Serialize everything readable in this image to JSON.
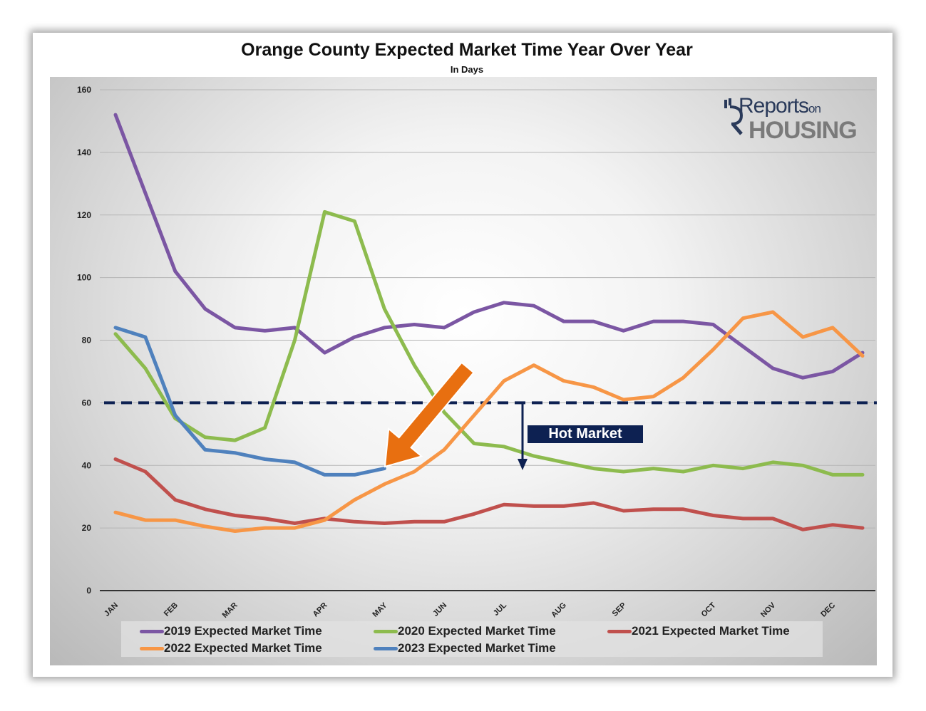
{
  "chart_data": {
    "type": "line",
    "title": "Orange County Expected Market Time Year Over Year",
    "subtitle": "In Days",
    "xlabel": "",
    "ylabel": "",
    "ylim": [
      0,
      160
    ],
    "yticks": [
      0,
      20,
      40,
      60,
      80,
      100,
      120,
      140,
      160
    ],
    "x_count": 26,
    "xtick_labels": [
      {
        "label": "JAN",
        "index": 0
      },
      {
        "label": "FEB",
        "index": 2
      },
      {
        "label": "MAR",
        "index": 4
      },
      {
        "label": "APR",
        "index": 7
      },
      {
        "label": "MAY",
        "index": 9
      },
      {
        "label": "JUN",
        "index": 11
      },
      {
        "label": "JUL",
        "index": 13
      },
      {
        "label": "AUG",
        "index": 15
      },
      {
        "label": "SEP",
        "index": 17
      },
      {
        "label": "OCT",
        "index": 20
      },
      {
        "label": "NOV",
        "index": 22
      },
      {
        "label": "DEC",
        "index": 24
      }
    ],
    "grid": true,
    "legend_position": "bottom",
    "series": [
      {
        "name": "2019 Expected Market Time",
        "color": "#7b56a3",
        "values": [
          152,
          127,
          102,
          90,
          84,
          83,
          84,
          76,
          81,
          84,
          85,
          84,
          89,
          92,
          91,
          86,
          86,
          83,
          86,
          86,
          85,
          78,
          71,
          68,
          70,
          76
        ]
      },
      {
        "name": "2020 Expected Market Time",
        "color": "#8dbb4e",
        "values": [
          82,
          71,
          55,
          49,
          48,
          52,
          80,
          121,
          118,
          90,
          72,
          57,
          47,
          46,
          43,
          41,
          39,
          38,
          39,
          38,
          40,
          39,
          41,
          40,
          37,
          37
        ]
      },
      {
        "name": "2021 Expected Market Time",
        "color": "#c0504d",
        "values": [
          42,
          38,
          29,
          26,
          24,
          23,
          21.5,
          23,
          22,
          21.5,
          22,
          22,
          24.5,
          27.5,
          27,
          27,
          28,
          25.5,
          26,
          26,
          24,
          23,
          23,
          19.5,
          21,
          20
        ]
      },
      {
        "name": "2022 Expected Market Time",
        "color": "#f79646",
        "values": [
          25,
          22.5,
          22.5,
          20.5,
          19,
          20,
          20,
          22.5,
          29,
          34,
          38,
          45,
          56,
          67,
          72,
          67,
          65,
          61,
          62,
          68,
          77,
          87,
          89,
          81,
          84,
          75
        ]
      },
      {
        "name": "2023 Expected Market Time",
        "color": "#4f81bd",
        "values": [
          84,
          81,
          56,
          45,
          44,
          42,
          41,
          37,
          37,
          39
        ]
      }
    ],
    "reference_line": {
      "value": 60,
      "style": "dashed",
      "color": "#0d2152"
    },
    "annotations": [
      {
        "text": "Hot Market",
        "color": "#0d2152"
      }
    ],
    "arrow_color": "#e86f10"
  },
  "logo": {
    "line1": "Reports",
    "line1_suffix": "on",
    "line2": "HOUSING"
  }
}
